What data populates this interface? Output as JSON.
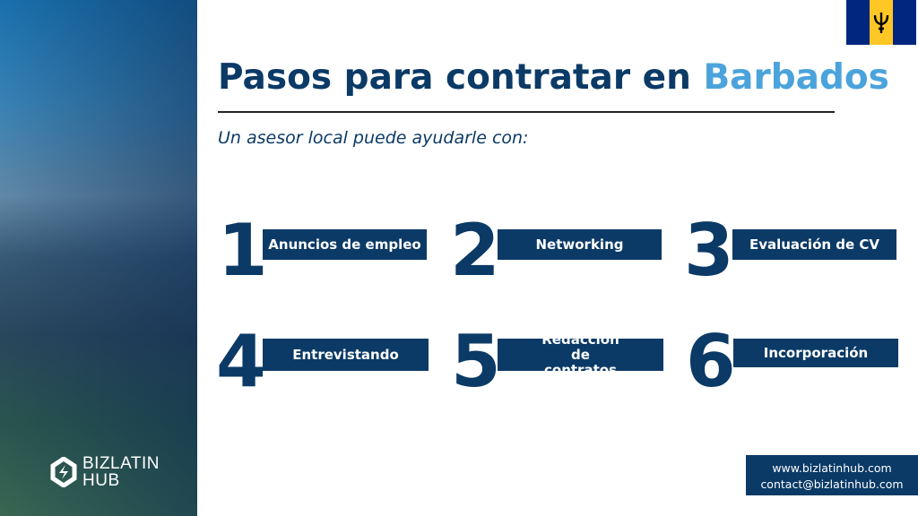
{
  "title": {
    "main": "Pasos para contratar en ",
    "highlight": "Barbados"
  },
  "subtitle": "Un asesor local puede ayudarle con:",
  "steps": [
    {
      "number": "1",
      "label": "Anuncios de empleo"
    },
    {
      "number": "2",
      "label": "Networking"
    },
    {
      "number": "3",
      "label": "Evaluación de CV"
    },
    {
      "number": "4",
      "label": "Entrevistando"
    },
    {
      "number": "5",
      "label": "Redacción de contratos"
    },
    {
      "number": "6",
      "label": "Incorporación"
    }
  ],
  "logo": {
    "line1": "BIZLATIN",
    "line2": "HUB"
  },
  "contact": {
    "website": "www.bizlatinhub.com",
    "email": "contact@bizlatinhub.com"
  },
  "colors": {
    "navy": "#0b3a66",
    "accent": "#4ba3dc",
    "flag_blue": "#00267f",
    "flag_gold": "#ffc726"
  }
}
